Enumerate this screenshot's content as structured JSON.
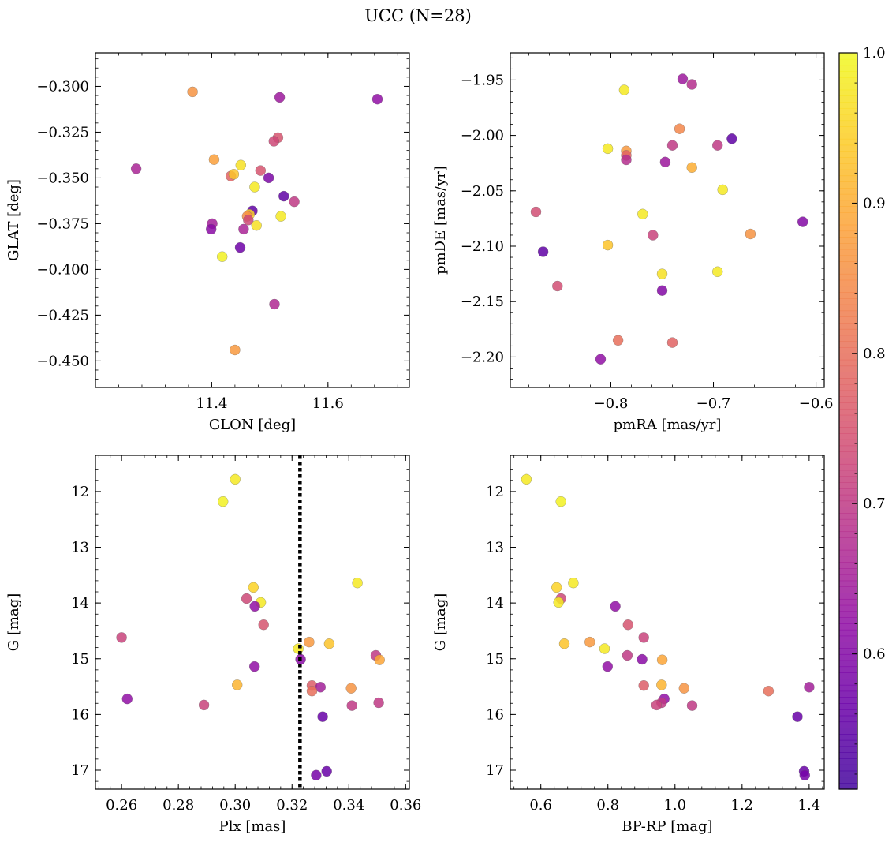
{
  "figure": {
    "suptitle": "UCC (N=28)"
  },
  "colorbar": {
    "ticks": [
      0.6,
      0.7,
      0.8,
      0.9,
      1.0
    ],
    "tick_labels": [
      "0.6",
      "0.7",
      "0.8",
      "0.9",
      "1.0"
    ],
    "range": [
      0.51,
      1.0
    ],
    "colormap": "plasma"
  },
  "chart_data": [
    {
      "type": "scatter",
      "xlabel": "GLON [deg]",
      "ylabel": "GLAT [deg]",
      "xlim": [
        11.2,
        11.74
      ],
      "ylim": [
        -0.4645,
        -0.2817
      ],
      "xticks": [
        11.4,
        11.6
      ],
      "xticklabels": [
        "11.4",
        "11.6"
      ],
      "yticks": [
        -0.3,
        -0.325,
        -0.35,
        -0.375,
        -0.4,
        -0.425,
        -0.45
      ],
      "yticklabels": [
        "−0.300",
        "−0.325",
        "−0.350",
        "−0.375",
        "−0.400",
        "−0.425",
        "−0.450"
      ],
      "invert_y": false,
      "points": [
        {
          "x": 11.367,
          "y": -0.303,
          "c": 0.86
        },
        {
          "x": 11.517,
          "y": -0.306,
          "c": 0.64
        },
        {
          "x": 11.685,
          "y": -0.307,
          "c": 0.62
        },
        {
          "x": 11.514,
          "y": -0.328,
          "c": 0.75
        },
        {
          "x": 11.507,
          "y": -0.33,
          "c": 0.73
        },
        {
          "x": 11.404,
          "y": -0.34,
          "c": 0.88
        },
        {
          "x": 11.27,
          "y": -0.345,
          "c": 0.66
        },
        {
          "x": 11.45,
          "y": -0.343,
          "c": 0.97
        },
        {
          "x": 11.484,
          "y": -0.346,
          "c": 0.75
        },
        {
          "x": 11.433,
          "y": -0.349,
          "c": 0.78
        },
        {
          "x": 11.438,
          "y": -0.348,
          "c": 0.93
        },
        {
          "x": 11.498,
          "y": -0.35,
          "c": 0.59
        },
        {
          "x": 11.474,
          "y": -0.355,
          "c": 0.98
        },
        {
          "x": 11.524,
          "y": -0.36,
          "c": 0.55
        },
        {
          "x": 11.542,
          "y": -0.363,
          "c": 0.7
        },
        {
          "x": 11.47,
          "y": -0.368,
          "c": 0.55
        },
        {
          "x": 11.465,
          "y": -0.37,
          "c": 0.95
        },
        {
          "x": 11.461,
          "y": -0.371,
          "c": 0.85
        },
        {
          "x": 11.519,
          "y": -0.371,
          "c": 0.98
        },
        {
          "x": 11.463,
          "y": -0.373,
          "c": 0.73
        },
        {
          "x": 11.401,
          "y": -0.375,
          "c": 0.65
        },
        {
          "x": 11.477,
          "y": -0.376,
          "c": 0.97
        },
        {
          "x": 11.399,
          "y": -0.378,
          "c": 0.61
        },
        {
          "x": 11.455,
          "y": -0.378,
          "c": 0.66
        },
        {
          "x": 11.449,
          "y": -0.388,
          "c": 0.57
        },
        {
          "x": 11.418,
          "y": -0.393,
          "c": 0.99
        },
        {
          "x": 11.508,
          "y": -0.419,
          "c": 0.67
        },
        {
          "x": 11.44,
          "y": -0.444,
          "c": 0.87
        }
      ]
    },
    {
      "type": "scatter",
      "xlabel": "pmRA [mas/yr]",
      "ylabel": "pmDE [mas/yr]",
      "xlim": [
        -0.898,
        -0.592
      ],
      "ylim": [
        -2.2275,
        -1.9255
      ],
      "xticks": [
        -0.8,
        -0.7,
        -0.6
      ],
      "xticklabels": [
        "−0.8",
        "−0.7",
        "−0.6"
      ],
      "yticks": [
        -1.95,
        -2.0,
        -2.05,
        -2.1,
        -2.15,
        -2.2
      ],
      "yticklabels": [
        "−1.95",
        "−2.00",
        "−2.05",
        "−2.10",
        "−2.15",
        "−2.20"
      ],
      "invert_y": false,
      "points": [
        {
          "x": -0.73,
          "y": -1.949,
          "c": 0.64
        },
        {
          "x": -0.721,
          "y": -1.954,
          "c": 0.68
        },
        {
          "x": -0.787,
          "y": -1.959,
          "c": 0.98
        },
        {
          "x": -0.733,
          "y": -1.994,
          "c": 0.84
        },
        {
          "x": -0.682,
          "y": -2.003,
          "c": 0.55
        },
        {
          "x": -0.74,
          "y": -2.009,
          "c": 0.7
        },
        {
          "x": -0.696,
          "y": -2.009,
          "c": 0.7
        },
        {
          "x": -0.803,
          "y": -2.012,
          "c": 0.98
        },
        {
          "x": -0.785,
          "y": -2.014,
          "c": 0.87
        },
        {
          "x": -0.785,
          "y": -2.018,
          "c": 0.78
        },
        {
          "x": -0.785,
          "y": -2.022,
          "c": 0.68
        },
        {
          "x": -0.747,
          "y": -2.024,
          "c": 0.64
        },
        {
          "x": -0.721,
          "y": -2.029,
          "c": 0.9
        },
        {
          "x": -0.691,
          "y": -2.049,
          "c": 0.98
        },
        {
          "x": -0.873,
          "y": -2.069,
          "c": 0.74
        },
        {
          "x": -0.769,
          "y": -2.071,
          "c": 0.98
        },
        {
          "x": -0.613,
          "y": -2.078,
          "c": 0.6
        },
        {
          "x": -0.664,
          "y": -2.089,
          "c": 0.86
        },
        {
          "x": -0.759,
          "y": -2.09,
          "c": 0.72
        },
        {
          "x": -0.803,
          "y": -2.099,
          "c": 0.93
        },
        {
          "x": -0.866,
          "y": -2.105,
          "c": 0.55
        },
        {
          "x": -0.696,
          "y": -2.123,
          "c": 0.98
        },
        {
          "x": -0.75,
          "y": -2.125,
          "c": 0.97
        },
        {
          "x": -0.852,
          "y": -2.136,
          "c": 0.74
        },
        {
          "x": -0.75,
          "y": -2.14,
          "c": 0.6
        },
        {
          "x": -0.793,
          "y": -2.185,
          "c": 0.8
        },
        {
          "x": -0.74,
          "y": -2.187,
          "c": 0.78
        },
        {
          "x": -0.81,
          "y": -2.202,
          "c": 0.62
        }
      ]
    },
    {
      "type": "scatter",
      "xlabel": "Plx [mas]",
      "ylabel": "G [mag]",
      "xlim": [
        0.2508,
        0.3613
      ],
      "ylim": [
        17.34,
        11.35
      ],
      "xticks": [
        0.26,
        0.28,
        0.3,
        0.32,
        0.34,
        0.36
      ],
      "xticklabels": [
        "0.26",
        "0.28",
        "0.30",
        "0.32",
        "0.34",
        "0.36"
      ],
      "yticks": [
        12,
        13,
        14,
        15,
        16,
        17
      ],
      "yticklabels": [
        "12",
        "13",
        "14",
        "15",
        "16",
        "17"
      ],
      "invert_y": true,
      "vline": {
        "x": 0.3228,
        "style": "dotted"
      },
      "points": [
        {
          "x": 0.3,
          "y": 11.78,
          "c": 0.98
        },
        {
          "x": 0.2957,
          "y": 12.18,
          "c": 0.99
        },
        {
          "x": 0.343,
          "y": 13.64,
          "c": 0.98
        },
        {
          "x": 0.3064,
          "y": 13.72,
          "c": 0.95
        },
        {
          "x": 0.304,
          "y": 13.92,
          "c": 0.73
        },
        {
          "x": 0.309,
          "y": 13.99,
          "c": 0.98
        },
        {
          "x": 0.3069,
          "y": 14.06,
          "c": 0.62
        },
        {
          "x": 0.31,
          "y": 14.39,
          "c": 0.75
        },
        {
          "x": 0.26,
          "y": 14.62,
          "c": 0.72
        },
        {
          "x": 0.326,
          "y": 14.7,
          "c": 0.87
        },
        {
          "x": 0.3331,
          "y": 14.73,
          "c": 0.93
        },
        {
          "x": 0.3222,
          "y": 14.82,
          "c": 0.98
        },
        {
          "x": 0.3495,
          "y": 14.94,
          "c": 0.7
        },
        {
          "x": 0.323,
          "y": 15.01,
          "c": 0.61
        },
        {
          "x": 0.3508,
          "y": 15.02,
          "c": 0.89
        },
        {
          "x": 0.3068,
          "y": 15.14,
          "c": 0.62
        },
        {
          "x": 0.3007,
          "y": 15.47,
          "c": 0.91
        },
        {
          "x": 0.327,
          "y": 15.48,
          "c": 0.77
        },
        {
          "x": 0.33,
          "y": 15.51,
          "c": 0.65
        },
        {
          "x": 0.3408,
          "y": 15.53,
          "c": 0.86
        },
        {
          "x": 0.327,
          "y": 15.58,
          "c": 0.8
        },
        {
          "x": 0.262,
          "y": 15.72,
          "c": 0.62
        },
        {
          "x": 0.3505,
          "y": 15.79,
          "c": 0.7
        },
        {
          "x": 0.289,
          "y": 15.83,
          "c": 0.72
        },
        {
          "x": 0.3411,
          "y": 15.84,
          "c": 0.7
        },
        {
          "x": 0.3308,
          "y": 16.04,
          "c": 0.56
        },
        {
          "x": 0.3322,
          "y": 17.02,
          "c": 0.56
        },
        {
          "x": 0.3285,
          "y": 17.09,
          "c": 0.58
        }
      ]
    },
    {
      "type": "scatter",
      "xlabel": "BP-RP [mag]",
      "ylabel": "G [mag]",
      "xlim": [
        0.509,
        1.445
      ],
      "ylim": [
        17.34,
        11.35
      ],
      "xticks": [
        0.6,
        0.8,
        1.0,
        1.2,
        1.4
      ],
      "xticklabels": [
        "0.6",
        "0.8",
        "1.0",
        "1.2",
        "1.4"
      ],
      "yticks": [
        12,
        13,
        14,
        15,
        16,
        17
      ],
      "yticklabels": [
        "12",
        "13",
        "14",
        "15",
        "16",
        "17"
      ],
      "invert_y": true,
      "points": [
        {
          "x": 0.557,
          "y": 11.78,
          "c": 0.98
        },
        {
          "x": 0.66,
          "y": 12.18,
          "c": 0.99
        },
        {
          "x": 0.697,
          "y": 13.64,
          "c": 0.98
        },
        {
          "x": 0.647,
          "y": 13.72,
          "c": 0.95
        },
        {
          "x": 0.66,
          "y": 13.92,
          "c": 0.73
        },
        {
          "x": 0.653,
          "y": 13.99,
          "c": 0.98
        },
        {
          "x": 0.822,
          "y": 14.06,
          "c": 0.62
        },
        {
          "x": 0.86,
          "y": 14.39,
          "c": 0.75
        },
        {
          "x": 0.907,
          "y": 14.62,
          "c": 0.72
        },
        {
          "x": 0.746,
          "y": 14.7,
          "c": 0.87
        },
        {
          "x": 0.67,
          "y": 14.73,
          "c": 0.93
        },
        {
          "x": 0.79,
          "y": 14.82,
          "c": 0.98
        },
        {
          "x": 0.858,
          "y": 14.94,
          "c": 0.7
        },
        {
          "x": 0.902,
          "y": 15.01,
          "c": 0.61
        },
        {
          "x": 0.962,
          "y": 15.02,
          "c": 0.89
        },
        {
          "x": 0.799,
          "y": 15.14,
          "c": 0.62
        },
        {
          "x": 0.96,
          "y": 15.47,
          "c": 0.91
        },
        {
          "x": 0.907,
          "y": 15.48,
          "c": 0.77
        },
        {
          "x": 1.4,
          "y": 15.51,
          "c": 0.65
        },
        {
          "x": 1.027,
          "y": 15.53,
          "c": 0.86
        },
        {
          "x": 1.279,
          "y": 15.58,
          "c": 0.8
        },
        {
          "x": 0.968,
          "y": 15.72,
          "c": 0.62
        },
        {
          "x": 0.96,
          "y": 15.79,
          "c": 0.7
        },
        {
          "x": 0.945,
          "y": 15.83,
          "c": 0.72
        },
        {
          "x": 1.051,
          "y": 15.84,
          "c": 0.7
        },
        {
          "x": 1.365,
          "y": 16.04,
          "c": 0.56
        },
        {
          "x": 1.385,
          "y": 17.02,
          "c": 0.56
        },
        {
          "x": 1.387,
          "y": 17.09,
          "c": 0.58
        }
      ]
    }
  ]
}
